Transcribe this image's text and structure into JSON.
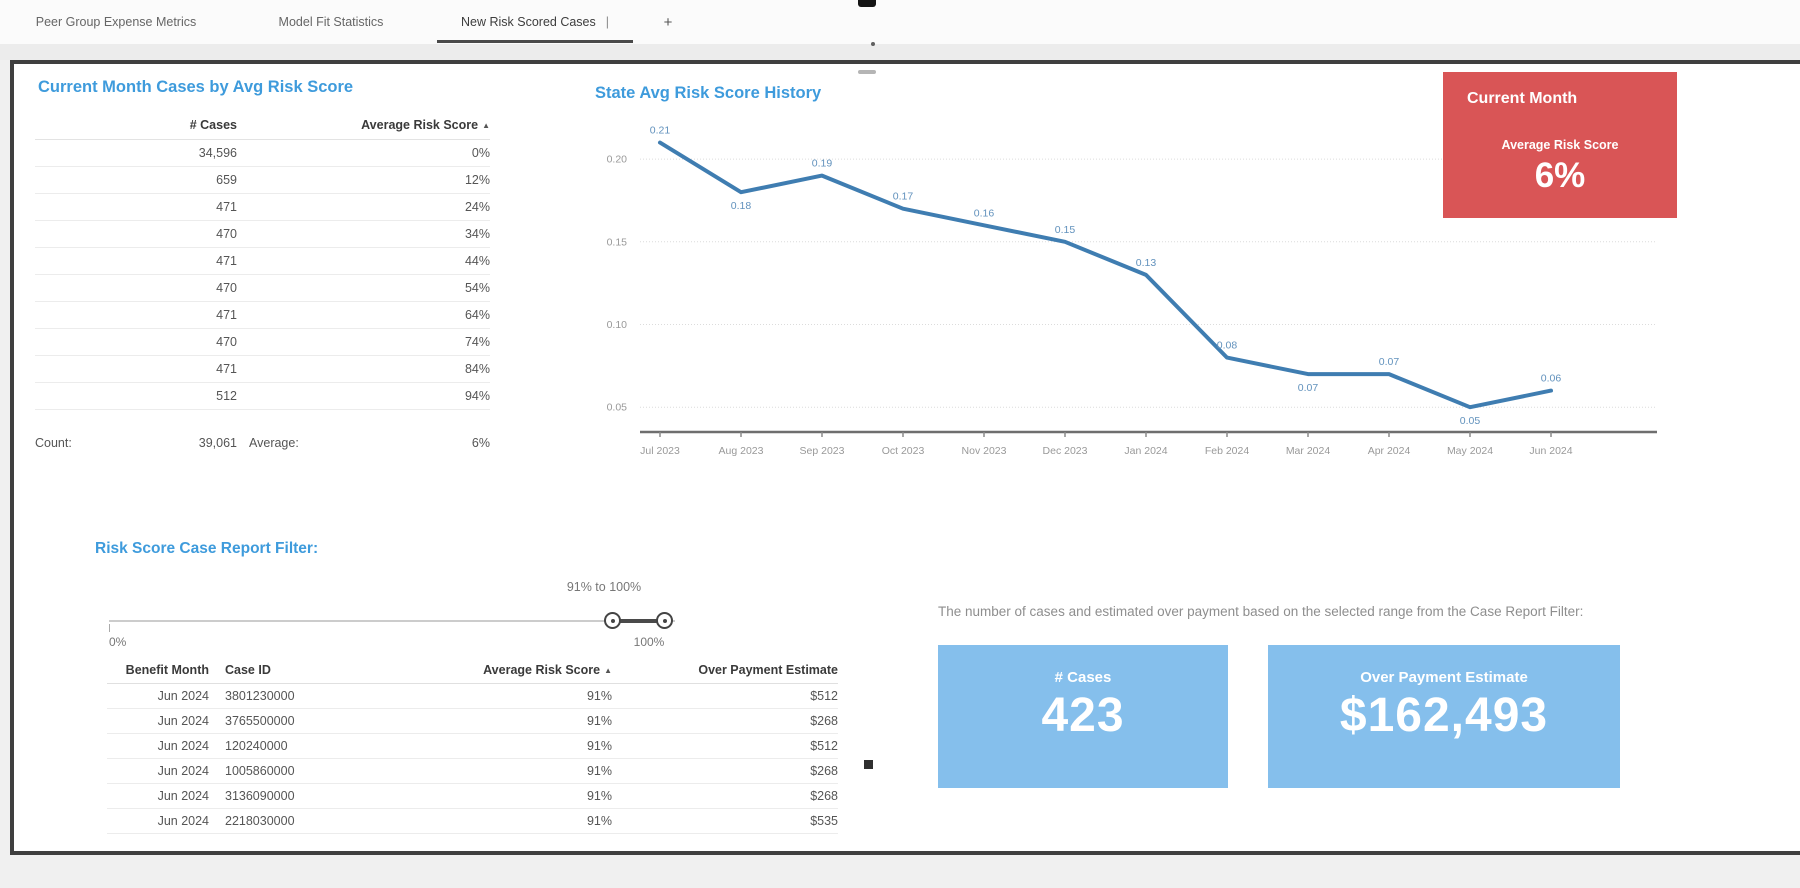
{
  "tab_bar": {
    "tabs": [
      {
        "label": "Peer Group Expense Metrics"
      },
      {
        "label": "Model Fit Statistics"
      },
      {
        "label": "New Risk Scored Cases"
      }
    ],
    "active_index": 2,
    "separator": "|",
    "add_tab_label": "+"
  },
  "score_table": {
    "title": "Current Month Cases by Avg Risk Score",
    "columns": [
      "# Cases",
      "Average Risk Score"
    ],
    "sort_arrow": "▲",
    "rows": [
      {
        "cases": "34,596",
        "score": "0%"
      },
      {
        "cases": "659",
        "score": "12%"
      },
      {
        "cases": "471",
        "score": "24%"
      },
      {
        "cases": "470",
        "score": "34%"
      },
      {
        "cases": "471",
        "score": "44%"
      },
      {
        "cases": "470",
        "score": "54%"
      },
      {
        "cases": "471",
        "score": "64%"
      },
      {
        "cases": "470",
        "score": "74%"
      },
      {
        "cases": "471",
        "score": "84%"
      },
      {
        "cases": "512",
        "score": "94%"
      }
    ],
    "footer": {
      "count_label": "Count:",
      "count": "39,061",
      "average_label": "Average:",
      "average": "6%"
    }
  },
  "chart_data": {
    "type": "line",
    "title": "State Avg Risk Score History",
    "x": [
      "Jul 2023",
      "Aug 2023",
      "Sep 2023",
      "Oct 2023",
      "Nov 2023",
      "Dec 2023",
      "Jan 2024",
      "Feb 2024",
      "Mar 2024",
      "Apr 2024",
      "May 2024",
      "Jun 2024"
    ],
    "values": [
      0.21,
      0.18,
      0.19,
      0.17,
      0.16,
      0.15,
      0.13,
      0.08,
      0.07,
      0.07,
      0.05,
      0.06
    ],
    "label_side": [
      "above",
      "below",
      "above",
      "above",
      "above",
      "above",
      "above",
      "above",
      "below",
      "above",
      "below",
      "above"
    ],
    "yticks": [
      0.05,
      0.1,
      0.15,
      0.2
    ],
    "ylim": [
      0.035,
      0.225
    ],
    "grid": true,
    "legend": "none",
    "line_color": "#3f7db1",
    "point_label_color": "#6292bd",
    "axis_label_color": "#999999"
  },
  "kpi_card": {
    "title": "Current Month",
    "label": "Average Risk Score",
    "value": "6%",
    "bg_color": "#d95556"
  },
  "filter_panel": {
    "title": "Risk Score Case Report Filter:",
    "range_label": "91% to 100%",
    "min_label": "0%",
    "max_label": "100%",
    "selected_min": "91%",
    "selected_max": "100%"
  },
  "case_table": {
    "columns": [
      "Benefit Month",
      "Case ID",
      "Average Risk Score",
      "Over Payment Estimate"
    ],
    "sort_arrow": "▲",
    "rows": [
      {
        "month": "Jun 2024",
        "case_id": "3801230000",
        "score": "91%",
        "estimate": "$512"
      },
      {
        "month": "Jun 2024",
        "case_id": "3765500000",
        "score": "91%",
        "estimate": "$268"
      },
      {
        "month": "Jun 2024",
        "case_id": "120240000",
        "score": "91%",
        "estimate": "$512"
      },
      {
        "month": "Jun 2024",
        "case_id": "1005860000",
        "score": "91%",
        "estimate": "$268"
      },
      {
        "month": "Jun 2024",
        "case_id": "3136090000",
        "score": "91%",
        "estimate": "$268"
      },
      {
        "month": "Jun 2024",
        "case_id": "2218030000",
        "score": "91%",
        "estimate": "$535"
      }
    ]
  },
  "summary": {
    "description": "The number of cases and estimated over payment based on the selected range from the Case Report Filter:",
    "cards": [
      {
        "label": "# Cases",
        "value": "423"
      },
      {
        "label": "Over Payment Estimate",
        "value": "$162,493"
      }
    ],
    "card_color": "#85bfec"
  },
  "colors": {
    "accent_blue": "#3e9bdc",
    "kpi_red": "#d95556",
    "card_blue": "#85bfec",
    "line_blue": "#3f7db1"
  }
}
